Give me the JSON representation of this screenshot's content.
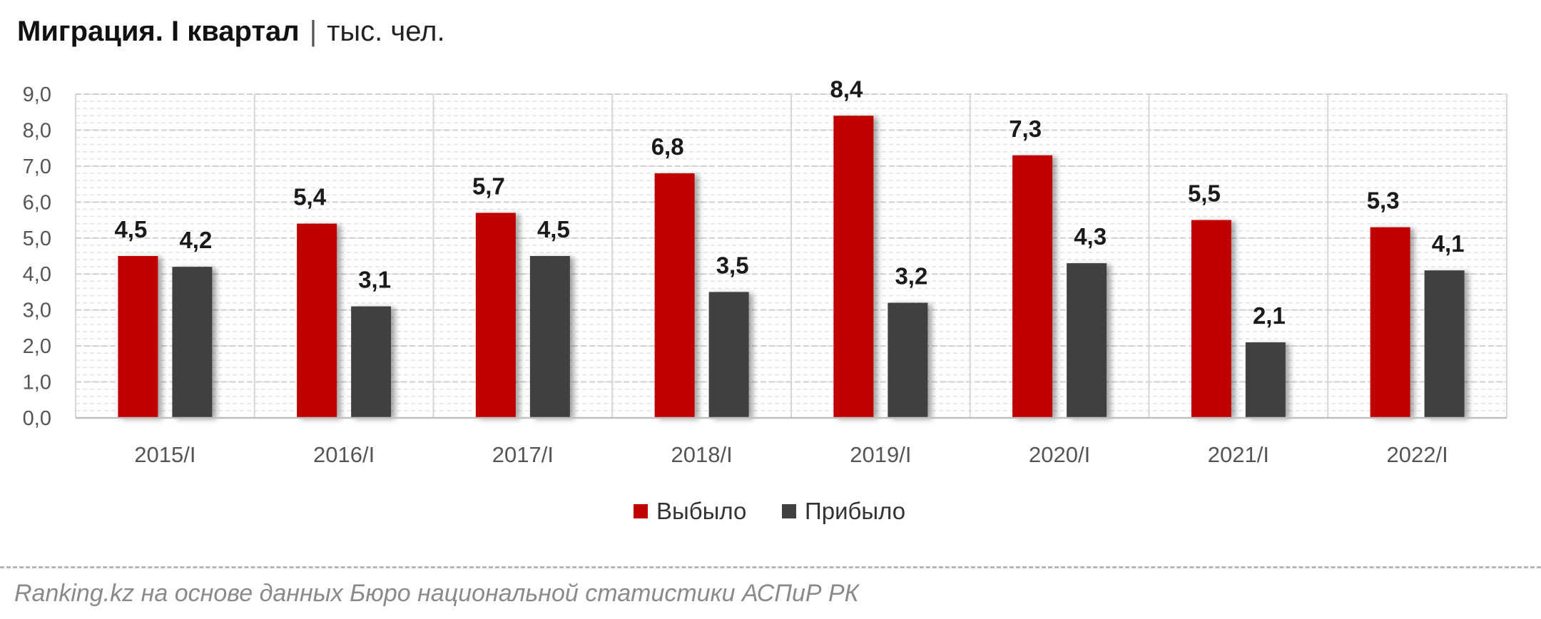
{
  "header": {
    "title": "Миграция. I квартал",
    "separator": "|",
    "unit": "тыс. чел."
  },
  "colors": {
    "departed": "#c00000",
    "arrived": "#404040",
    "grid": "#cfcfcf",
    "axis_text": "#555555",
    "label_text": "#1a1a1a"
  },
  "chart_data": {
    "type": "bar",
    "categories": [
      "2015/I",
      "2016/I",
      "2017/I",
      "2018/I",
      "2019/I",
      "2020/I",
      "2021/I",
      "2022/I"
    ],
    "series": [
      {
        "name": "Выбыло",
        "values": [
          4.5,
          5.4,
          5.7,
          6.8,
          8.4,
          7.3,
          5.5,
          5.3
        ],
        "value_labels": [
          "4,5",
          "5,4",
          "5,7",
          "6,8",
          "8,4",
          "7,3",
          "5,5",
          "5,3"
        ]
      },
      {
        "name": "Прибыло",
        "values": [
          4.2,
          3.1,
          4.5,
          3.5,
          3.2,
          4.3,
          2.1,
          4.1
        ],
        "value_labels": [
          "4,2",
          "3,1",
          "4,5",
          "3,5",
          "3,2",
          "4,3",
          "2,1",
          "4,1"
        ]
      }
    ],
    "ylim": [
      0,
      9
    ],
    "yticks": [
      0,
      1,
      2,
      3,
      4,
      5,
      6,
      7,
      8,
      9
    ],
    "ytick_labels": [
      "0,0",
      "1,0",
      "2,0",
      "3,0",
      "4,0",
      "5,0",
      "6,0",
      "7,0",
      "8,0",
      "9,0"
    ],
    "xlabel": "",
    "ylabel": "",
    "grid": true,
    "legend_position": "bottom-center"
  },
  "footer": {
    "source": "Ranking.kz на основе данных Бюро национальной статистики АСПиР РК"
  }
}
